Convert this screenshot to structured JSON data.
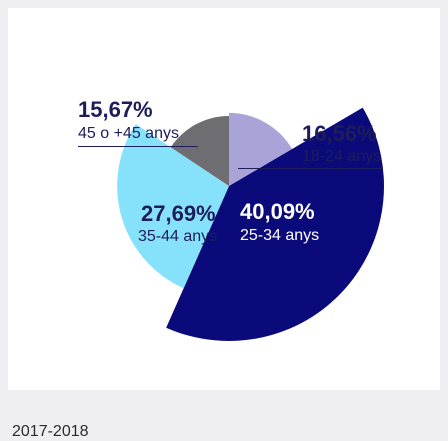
{
  "chart_data": {
    "type": "pie",
    "title": "",
    "slices": [
      {
        "label": "18-24 anys",
        "percent_text": "16,56%",
        "value": 16.56,
        "color": "#a9a3d8"
      },
      {
        "label": "25-34 anys",
        "percent_text": "40,09%",
        "value": 40.09,
        "color": "#0b0a7a"
      },
      {
        "label": "35-44 anys",
        "percent_text": "27,69%",
        "value": 27.69,
        "color": "#86e1fb"
      },
      {
        "label": "45 o +45 anys",
        "percent_text": "15,67%",
        "value": 15.67,
        "color": "#6e6e72"
      }
    ]
  },
  "footer": {
    "period": "2017-2018"
  },
  "colors": {
    "text_dark": "#1d1d5c",
    "text_light": "#ffffff",
    "background": "#efeff1"
  }
}
